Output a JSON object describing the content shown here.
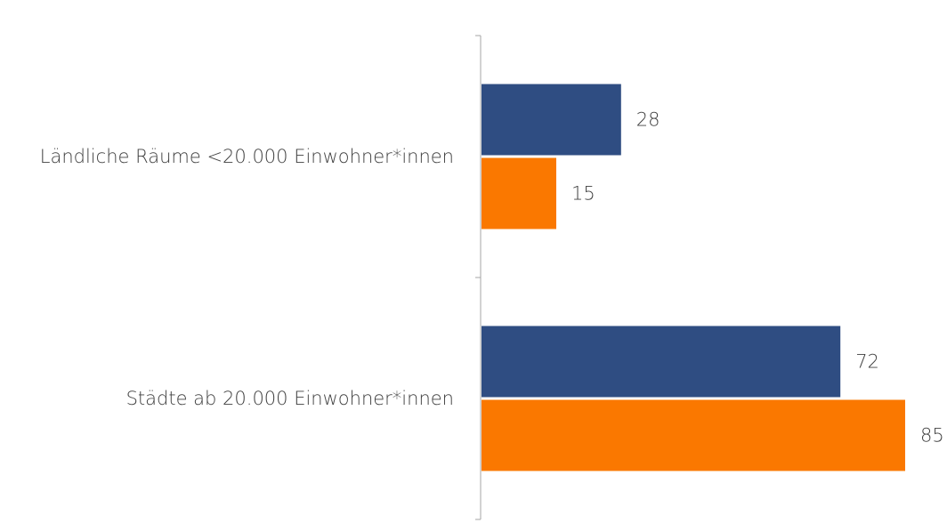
{
  "chart_data": {
    "type": "bar",
    "orientation": "horizontal",
    "title": "",
    "xlabel": "",
    "ylabel": "",
    "categories": [
      "Ländliche Räume <20.000 Einwohner*innen",
      "Städte ab 20.000 Einwohner*innen"
    ],
    "series": [
      {
        "values": [
          28,
          72
        ],
        "color": "#2f4d82"
      },
      {
        "values": [
          15,
          85
        ],
        "color": "#fa7800"
      }
    ],
    "xlim": [
      0,
      100
    ],
    "grid": false,
    "legend": "none",
    "axis_color": "#a6a6a6"
  }
}
